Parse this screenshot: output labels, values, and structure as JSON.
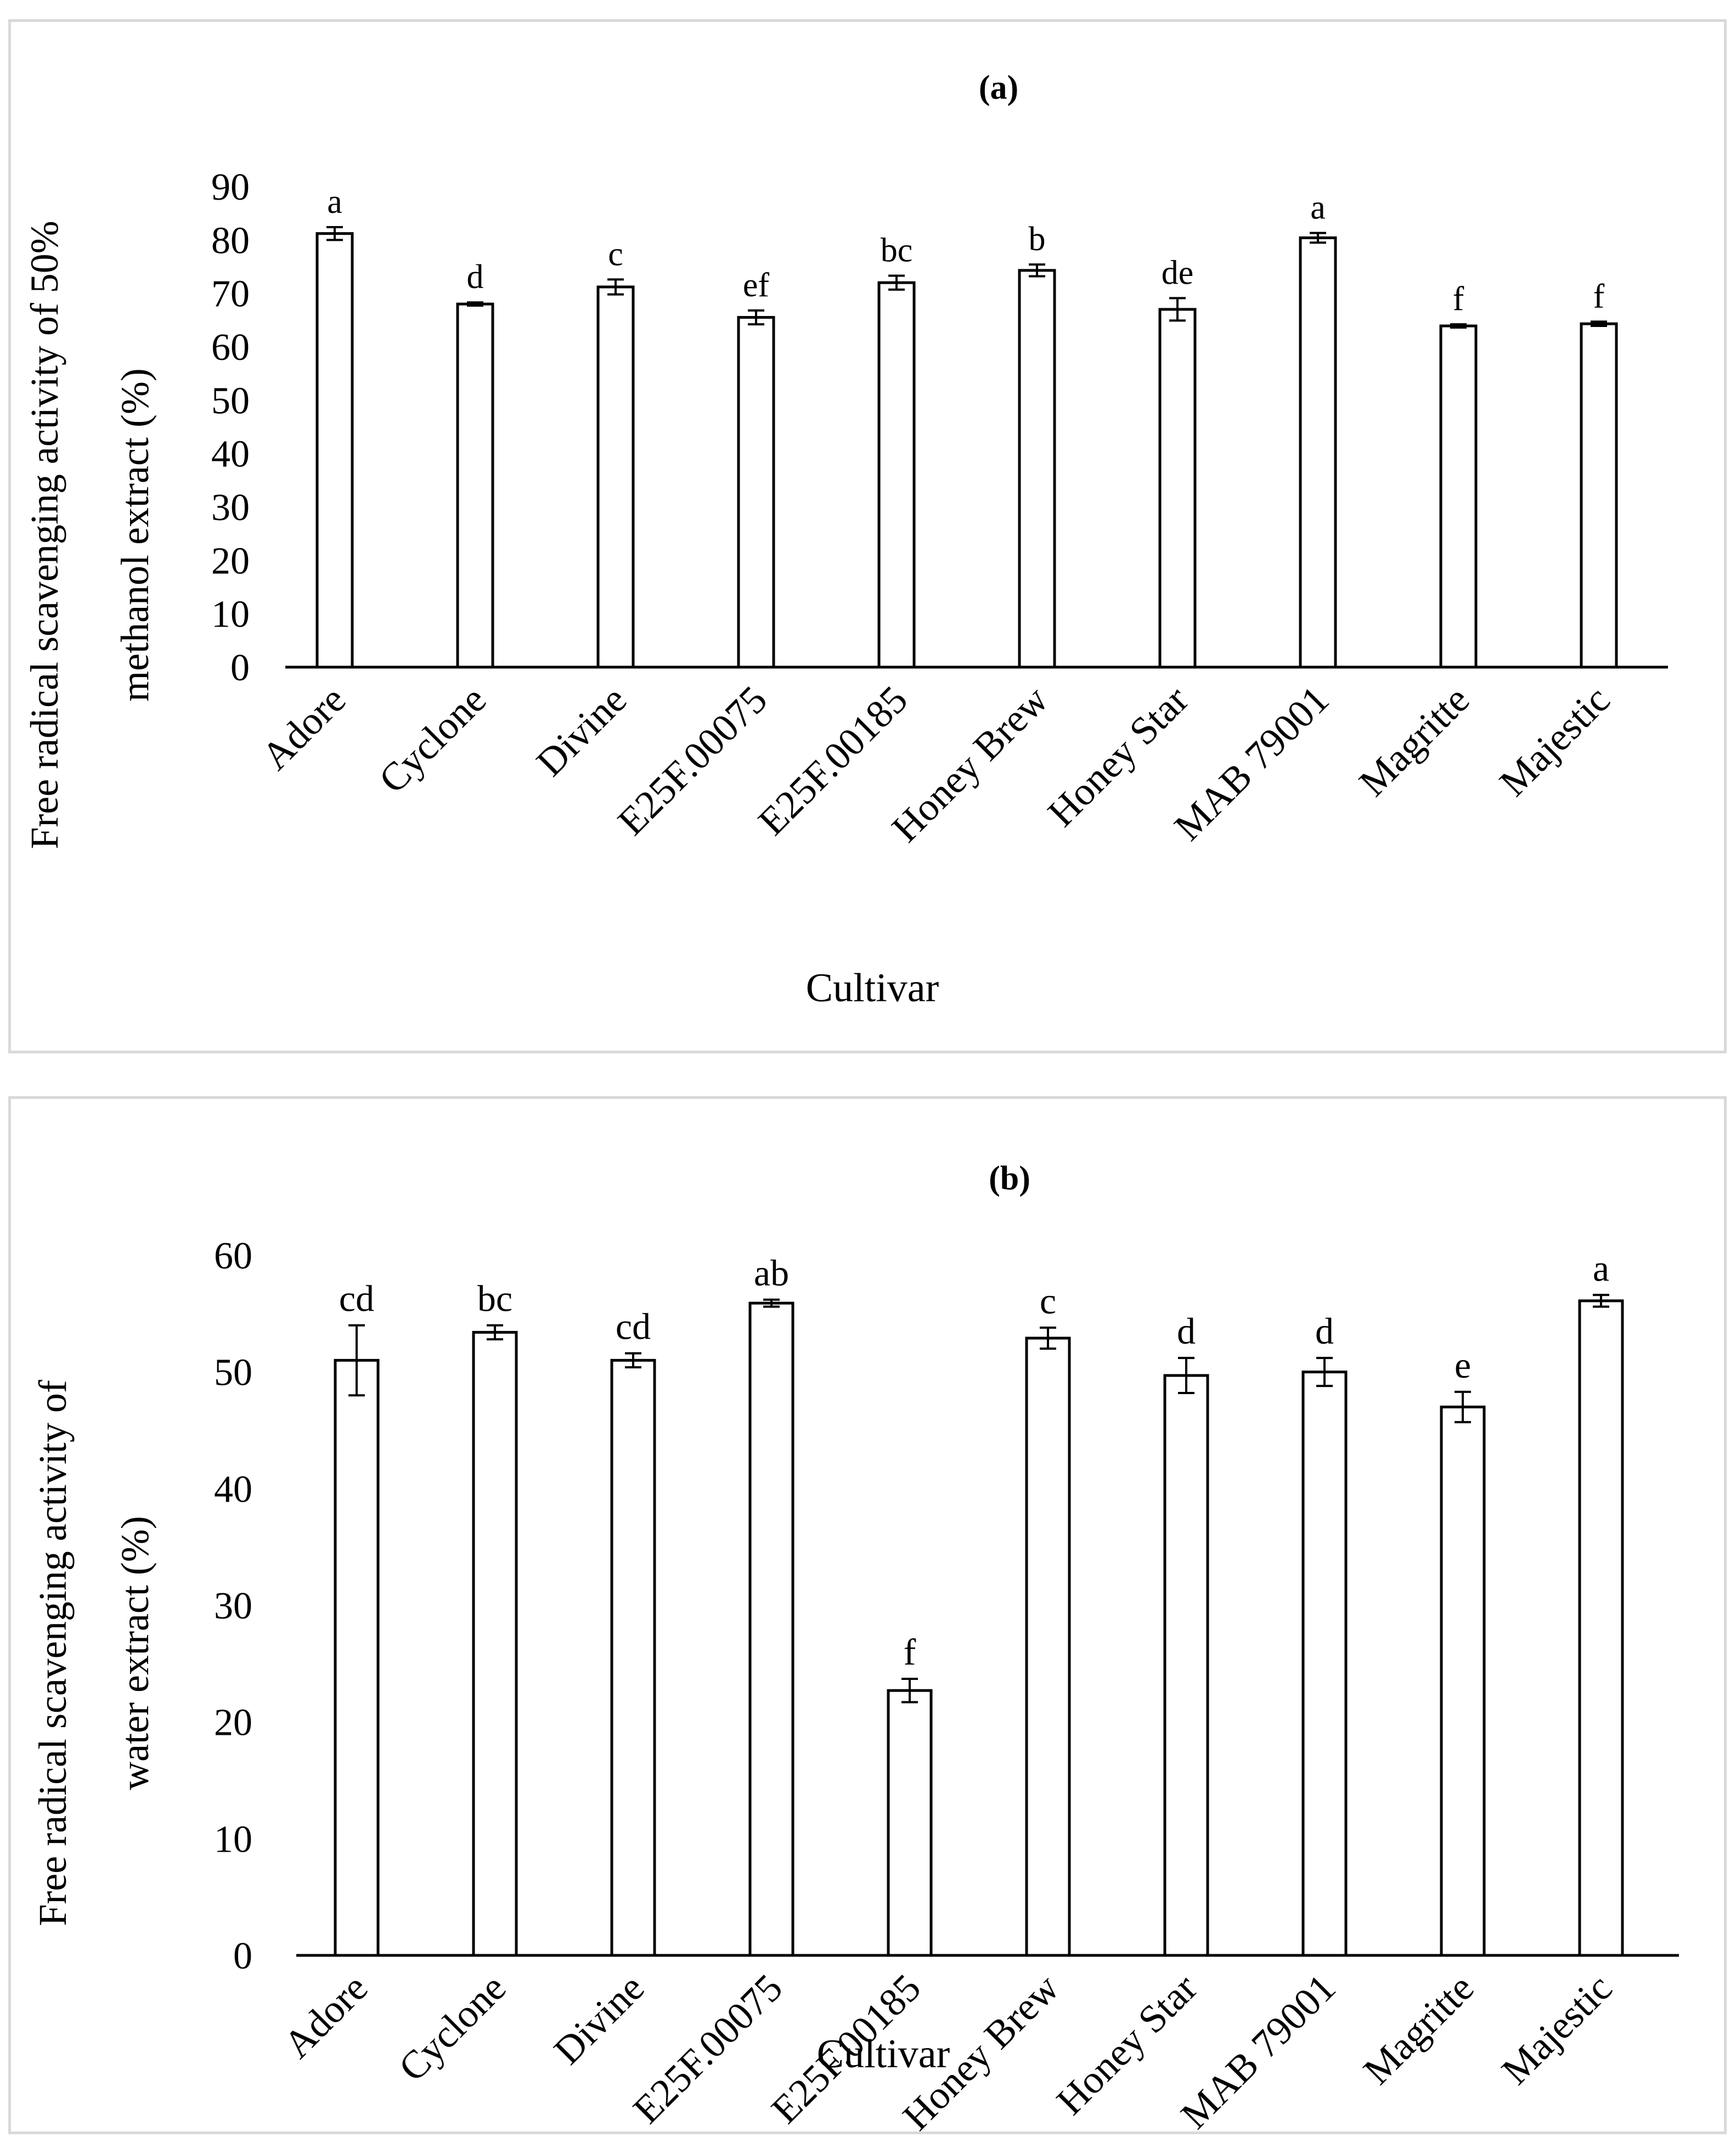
{
  "chart_data": [
    {
      "type": "bar",
      "title": "(a)",
      "xlabel": "Cultivar",
      "ylabel_lines": [
        "Free radical scavenging activity of 50%",
        "methanol extract (%)"
      ],
      "categories": [
        "Adore",
        "Cyclone",
        "Divine",
        "E25F.00075",
        "E25F.00185",
        "Honey Brew",
        "Honey Star",
        "MAB 79001",
        "Magritte",
        "Majestic"
      ],
      "values": [
        81.2,
        68.0,
        71.2,
        65.5,
        72.0,
        74.3,
        67.0,
        80.4,
        63.9,
        64.3
      ],
      "errors": [
        1.2,
        0.3,
        1.4,
        1.3,
        1.3,
        1.1,
        2.1,
        0.9,
        0.3,
        0.4
      ],
      "labels": [
        "a",
        "d",
        "c",
        "ef",
        "bc",
        "b",
        "de",
        "a",
        "f",
        "f"
      ],
      "ylim": [
        0,
        90
      ],
      "yticks": [
        0,
        10,
        20,
        30,
        40,
        50,
        60,
        70,
        80,
        90
      ]
    },
    {
      "type": "bar",
      "title": "(b)",
      "xlabel": "Cultivar",
      "ylabel_lines": [
        "Free radical scavenging activity of",
        "water extract (%)"
      ],
      "categories": [
        "Adore",
        "Cyclone",
        "Divine",
        "E25F.00075",
        "E25F.00185",
        "Honey Brew",
        "Honey Star",
        "MAB 79001",
        "Magritte",
        "Majestic"
      ],
      "values": [
        51.0,
        53.4,
        51.0,
        55.9,
        22.7,
        52.9,
        49.7,
        50.0,
        47.0,
        56.1
      ],
      "errors": [
        3.0,
        0.6,
        0.6,
        0.3,
        1.0,
        0.9,
        1.5,
        1.2,
        1.3,
        0.5
      ],
      "labels": [
        "cd",
        "bc",
        "cd",
        "ab",
        "f",
        "c",
        "d",
        "d",
        "e",
        "a"
      ],
      "ylim": [
        0,
        60
      ],
      "yticks": [
        0,
        10,
        20,
        30,
        40,
        50,
        60
      ]
    }
  ]
}
